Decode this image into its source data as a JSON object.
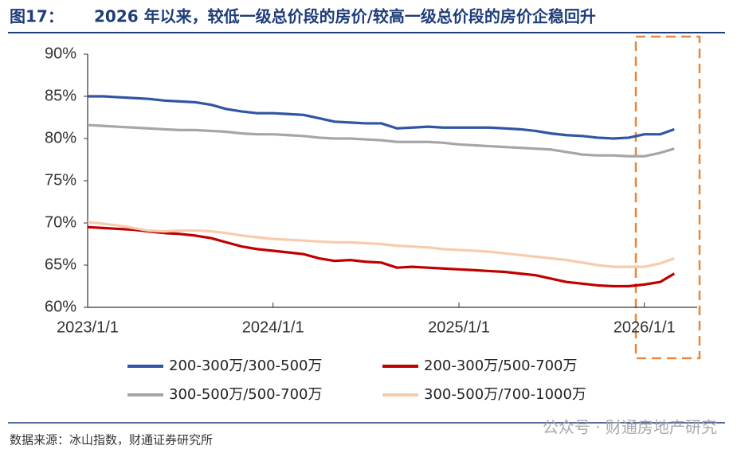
{
  "figure_label": "图17：",
  "source": "数据来源：冰山指数，财通证券研究所",
  "watermark": "公众号 · 财通房地产研究",
  "chart_data": {
    "type": "line",
    "title": "2026 年以来，较低一级总价段的房价/较高一级总价段的房价企稳回升",
    "x": [
      "2023/1/1",
      "2023/2/1",
      "2023/3/1",
      "2023/4/1",
      "2023/5/1",
      "2023/6/1",
      "2023/7/1",
      "2023/8/1",
      "2023/9/1",
      "2023/10/1",
      "2023/11/1",
      "2023/12/1",
      "2024/1/1",
      "2024/2/1",
      "2024/3/1",
      "2024/4/1",
      "2024/5/1",
      "2024/6/1",
      "2024/7/1",
      "2024/8/1",
      "2024/9/1",
      "2024/10/1",
      "2024/11/1",
      "2024/12/1",
      "2025/1/1",
      "2025/2/1",
      "2025/3/1",
      "2025/4/1",
      "2025/5/1",
      "2025/6/1",
      "2025/7/1",
      "2025/8/1",
      "2025/9/1",
      "2025/10/1",
      "2025/11/1",
      "2025/12/1",
      "2026/1/1",
      "2026/2/1",
      "2026/3/1"
    ],
    "series": [
      {
        "name": "200-300万/300-500万",
        "color": "#2f55a4",
        "values": [
          85.0,
          85.0,
          84.9,
          84.8,
          84.7,
          84.5,
          84.4,
          84.3,
          84.0,
          83.5,
          83.2,
          83.0,
          83.0,
          82.9,
          82.8,
          82.4,
          82.0,
          81.9,
          81.8,
          81.8,
          81.2,
          81.3,
          81.4,
          81.3,
          81.3,
          81.3,
          81.3,
          81.2,
          81.1,
          80.9,
          80.6,
          80.4,
          80.3,
          80.1,
          80.0,
          80.1,
          80.5,
          80.5,
          81.1
        ]
      },
      {
        "name": "200-300万/500-700万",
        "color": "#c00000",
        "values": [
          69.5,
          69.4,
          69.3,
          69.2,
          69.0,
          68.8,
          68.7,
          68.5,
          68.2,
          67.7,
          67.2,
          66.9,
          66.7,
          66.5,
          66.3,
          65.8,
          65.5,
          65.6,
          65.4,
          65.3,
          64.7,
          64.8,
          64.7,
          64.6,
          64.5,
          64.4,
          64.3,
          64.2,
          64.0,
          63.8,
          63.4,
          63.0,
          62.8,
          62.6,
          62.5,
          62.5,
          62.7,
          63.0,
          64.0
        ]
      },
      {
        "name": "300-500万/500-700万",
        "color": "#a6a6a6",
        "values": [
          81.6,
          81.5,
          81.4,
          81.3,
          81.2,
          81.1,
          81.0,
          81.0,
          80.9,
          80.8,
          80.6,
          80.5,
          80.5,
          80.4,
          80.3,
          80.1,
          80.0,
          80.0,
          79.9,
          79.8,
          79.6,
          79.6,
          79.6,
          79.5,
          79.3,
          79.2,
          79.1,
          79.0,
          78.9,
          78.8,
          78.7,
          78.4,
          78.1,
          78.0,
          78.0,
          77.9,
          77.9,
          78.3,
          78.8
        ]
      },
      {
        "name": "300-500万/700-1000万",
        "color": "#f8cbad",
        "values": [
          70.1,
          69.9,
          69.7,
          69.4,
          69.1,
          69.0,
          69.1,
          69.1,
          69.0,
          68.8,
          68.5,
          68.3,
          68.1,
          68.0,
          67.9,
          67.8,
          67.7,
          67.7,
          67.6,
          67.5,
          67.3,
          67.2,
          67.1,
          66.9,
          66.8,
          66.7,
          66.6,
          66.4,
          66.2,
          66.0,
          65.8,
          65.6,
          65.3,
          65.0,
          64.8,
          64.8,
          64.8,
          65.2,
          65.8
        ]
      }
    ],
    "xlim": [
      "2023/1/1",
      "2026/4/15"
    ],
    "xticks": [
      "2023/1/1",
      "2024/1/1",
      "2025/1/1",
      "2026/1/1"
    ],
    "ylim": [
      60,
      90
    ],
    "yticks": [
      {
        "value": 60,
        "label": "60%"
      },
      {
        "value": 65,
        "label": "65%"
      },
      {
        "value": 70,
        "label": "70%"
      },
      {
        "value": 75,
        "label": "75%"
      },
      {
        "value": 80,
        "label": "80%"
      },
      {
        "value": 85,
        "label": "85%"
      },
      {
        "value": 90,
        "label": "90%"
      }
    ],
    "grid": false
  }
}
